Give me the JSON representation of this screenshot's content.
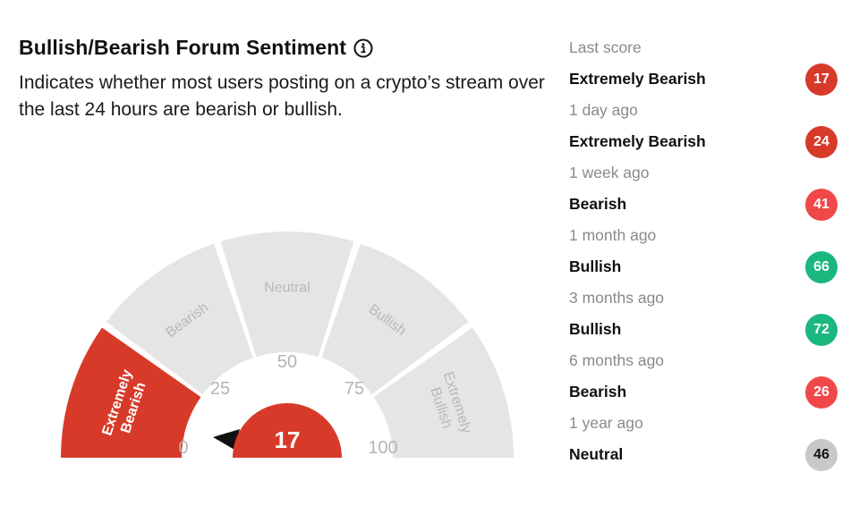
{
  "header": {
    "title": "Bullish/Bearish Forum Sentiment",
    "subtitle": "Indicates whether most users posting on a crypto’s stream over the last 24 hours are bearish or bullish."
  },
  "gauge": {
    "score": 17,
    "active_segment": 0,
    "segments": [
      {
        "lines": [
          "Extremely",
          "Bearish"
        ]
      },
      {
        "lines": [
          "Bearish"
        ]
      },
      {
        "lines": [
          "Neutral"
        ]
      },
      {
        "lines": [
          "Bullish"
        ]
      },
      {
        "lines": [
          "Extremely",
          "Bullish"
        ]
      }
    ],
    "ticks": [
      "0",
      "25",
      "50",
      "75",
      "100"
    ],
    "colors": {
      "active": "#d83a2a",
      "inactive": "#e5e5e7",
      "inactive_text": "#b8b8b8",
      "tick_text": "#b5b5b5",
      "needle": "#111111"
    }
  },
  "history": [
    {
      "when": "Last score",
      "label": "Extremely Bearish",
      "value": "17",
      "color": "#d83a2a"
    },
    {
      "when": "1 day ago",
      "label": "Extremely Bearish",
      "value": "24",
      "color": "#d83a2a"
    },
    {
      "when": "1 week ago",
      "label": "Bearish",
      "value": "41",
      "color": "#f04848"
    },
    {
      "when": "1 month ago",
      "label": "Bullish",
      "value": "66",
      "color": "#1ab77f"
    },
    {
      "when": "3 months ago",
      "label": "Bullish",
      "value": "72",
      "color": "#1ab77f"
    },
    {
      "when": "6 months ago",
      "label": "Bearish",
      "value": "26",
      "color": "#f04848"
    },
    {
      "when": "1 year ago",
      "label": "Neutral",
      "value": "46",
      "color": "#c8c8c8"
    }
  ]
}
